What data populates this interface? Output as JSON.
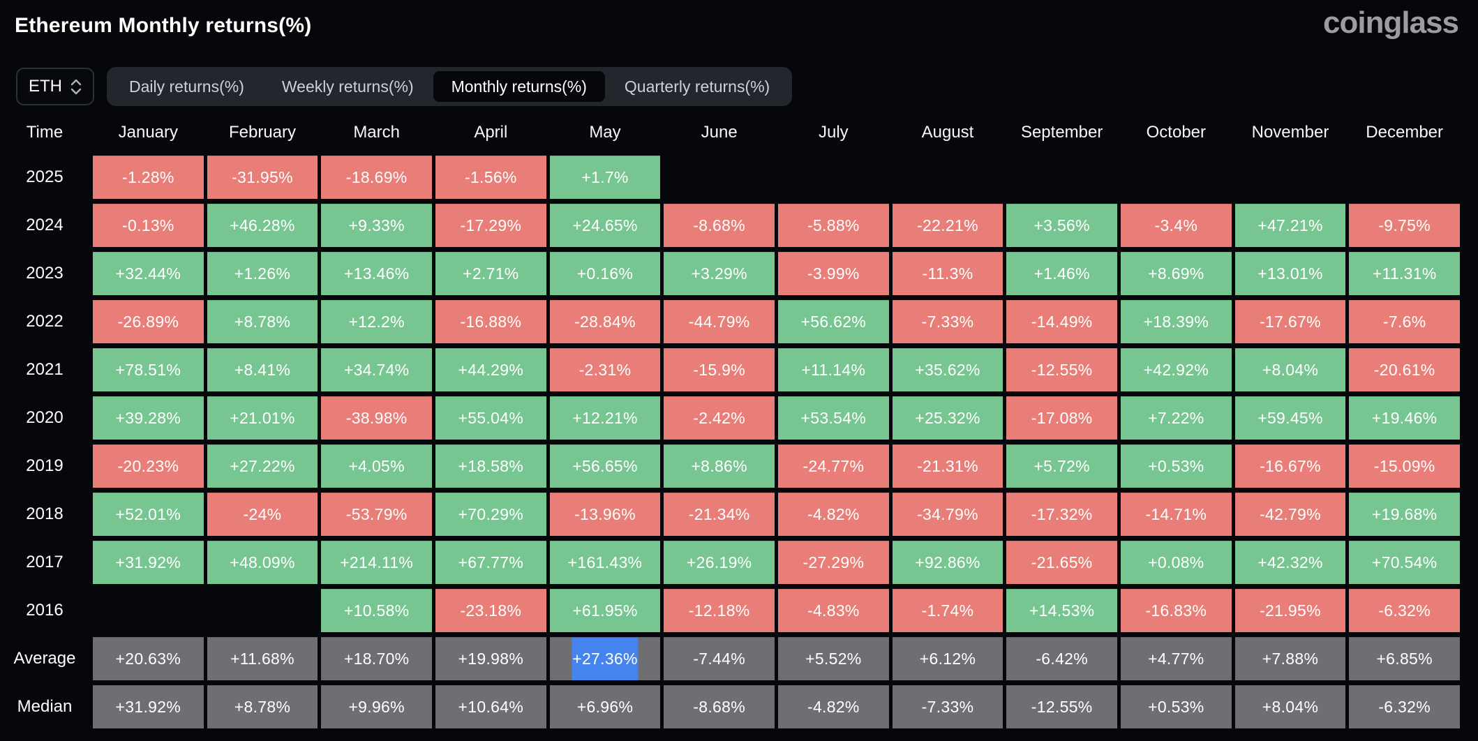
{
  "page": {
    "title": "Ethereum Monthly returns(%)",
    "brand": "coinglass"
  },
  "controls": {
    "symbol": {
      "value": "ETH"
    },
    "tabs": [
      {
        "label": "Daily returns(%)",
        "selected": false
      },
      {
        "label": "Weekly returns(%)",
        "selected": false
      },
      {
        "label": "Monthly returns(%)",
        "selected": true
      },
      {
        "label": "Quarterly returns(%)",
        "selected": false
      }
    ]
  },
  "table": {
    "corner_label": "Time",
    "months": [
      "January",
      "February",
      "March",
      "April",
      "May",
      "June",
      "July",
      "August",
      "September",
      "October",
      "November",
      "December"
    ],
    "rows": [
      {
        "label": "2025",
        "type": "year",
        "values": [
          "-1.28%",
          "-31.95%",
          "-18.69%",
          "-1.56%",
          "+1.7%",
          "",
          "",
          "",
          "",
          "",
          "",
          ""
        ]
      },
      {
        "label": "2024",
        "type": "year",
        "values": [
          "-0.13%",
          "+46.28%",
          "+9.33%",
          "-17.29%",
          "+24.65%",
          "-8.68%",
          "-5.88%",
          "-22.21%",
          "+3.56%",
          "-3.4%",
          "+47.21%",
          "-9.75%"
        ]
      },
      {
        "label": "2023",
        "type": "year",
        "values": [
          "+32.44%",
          "+1.26%",
          "+13.46%",
          "+2.71%",
          "+0.16%",
          "+3.29%",
          "-3.99%",
          "-11.3%",
          "+1.46%",
          "+8.69%",
          "+13.01%",
          "+11.31%"
        ]
      },
      {
        "label": "2022",
        "type": "year",
        "values": [
          "-26.89%",
          "+8.78%",
          "+12.2%",
          "-16.88%",
          "-28.84%",
          "-44.79%",
          "+56.62%",
          "-7.33%",
          "-14.49%",
          "+18.39%",
          "-17.67%",
          "-7.6%"
        ]
      },
      {
        "label": "2021",
        "type": "year",
        "values": [
          "+78.51%",
          "+8.41%",
          "+34.74%",
          "+44.29%",
          "-2.31%",
          "-15.9%",
          "+11.14%",
          "+35.62%",
          "-12.55%",
          "+42.92%",
          "+8.04%",
          "-20.61%"
        ]
      },
      {
        "label": "2020",
        "type": "year",
        "values": [
          "+39.28%",
          "+21.01%",
          "-38.98%",
          "+55.04%",
          "+12.21%",
          "-2.42%",
          "+53.54%",
          "+25.32%",
          "-17.08%",
          "+7.22%",
          "+59.45%",
          "+19.46%"
        ]
      },
      {
        "label": "2019",
        "type": "year",
        "values": [
          "-20.23%",
          "+27.22%",
          "+4.05%",
          "+18.58%",
          "+56.65%",
          "+8.86%",
          "-24.77%",
          "-21.31%",
          "+5.72%",
          "+0.53%",
          "-16.67%",
          "-15.09%"
        ]
      },
      {
        "label": "2018",
        "type": "year",
        "values": [
          "+52.01%",
          "-24%",
          "-53.79%",
          "+70.29%",
          "-13.96%",
          "-21.34%",
          "-4.82%",
          "-34.79%",
          "-17.32%",
          "-14.71%",
          "-42.79%",
          "+19.68%"
        ]
      },
      {
        "label": "2017",
        "type": "year",
        "values": [
          "+31.92%",
          "+48.09%",
          "+214.11%",
          "+67.77%",
          "+161.43%",
          "+26.19%",
          "-27.29%",
          "+92.86%",
          "-21.65%",
          "+0.08%",
          "+42.32%",
          "+70.54%"
        ]
      },
      {
        "label": "2016",
        "type": "year",
        "values": [
          "",
          "",
          "+10.58%",
          "-23.18%",
          "+61.95%",
          "-12.18%",
          "-4.83%",
          "-1.74%",
          "+14.53%",
          "-16.83%",
          "-21.95%",
          "-6.32%"
        ]
      },
      {
        "label": "Average",
        "type": "summary",
        "values": [
          "+20.63%",
          "+11.68%",
          "+18.70%",
          "+19.98%",
          "+27.36%",
          "-7.44%",
          "+5.52%",
          "+6.12%",
          "-6.42%",
          "+4.77%",
          "+7.88%",
          "+6.85%"
        ]
      },
      {
        "label": "Median",
        "type": "summary",
        "values": [
          "+31.92%",
          "+8.78%",
          "+9.96%",
          "+10.64%",
          "+6.96%",
          "-8.68%",
          "-4.82%",
          "-7.33%",
          "-12.55%",
          "+0.53%",
          "+8.04%",
          "-6.32%"
        ]
      }
    ],
    "highlight": {
      "row_label": "Average",
      "month_index": 4,
      "value": "+27.36%"
    }
  },
  "colors": {
    "background": "#05070a",
    "positive": "#77c691",
    "negative": "#e97e79",
    "summary": "#6e6f72",
    "highlight": "#4584ef",
    "text": "#ffffff"
  }
}
